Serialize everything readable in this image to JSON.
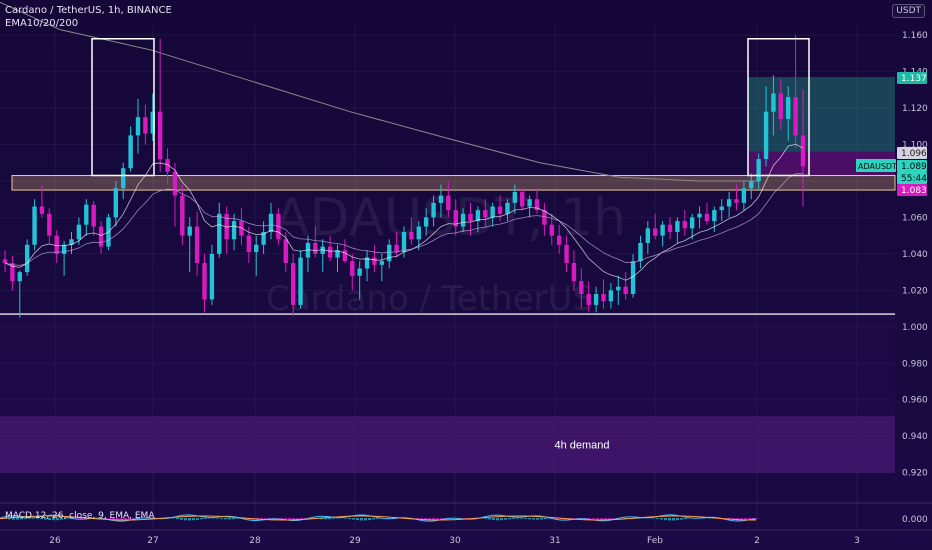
{
  "legend": {
    "symbol_line": "Cardano / TetherUS, 1h, BINANCE",
    "indicator_line": "EMA10/20/200"
  },
  "unit_badge": "USDT",
  "watermark": {
    "symbol": "ADAUSDT, 1h",
    "name": "Cardano / TetherUS"
  },
  "price_tags": [
    {
      "label": "1.137",
      "bg": "#1db9a3",
      "fg": "#ffffff",
      "value": 1.137
    },
    {
      "label": "1.096",
      "bg": "#d6d2e0",
      "fg": "#1a1a1a",
      "value": 1.096
    },
    {
      "label": "1.089",
      "bg": "#2dd4bf",
      "fg": "#0a0a0a",
      "value": 1.089
    },
    {
      "label": "55:44",
      "bg": "#2dd4bf",
      "fg": "#0a0a0a",
      "value": 1.085
    },
    {
      "label": "1.083",
      "bg": "#d81bc0",
      "fg": "#ffffff",
      "value": 1.078
    }
  ],
  "symbol_tag": "ADAUSDT",
  "zone_label": "4h demand",
  "macd_label": "MACD 12, 26, close, 9, EMA, EMA",
  "colors": {
    "bull": "#22c3d6",
    "bear": "#d81bc0",
    "resistance_band": "#c79a6a",
    "support_line": "#e8e8e8",
    "demand_zone": "#5b1d85",
    "tp_zone": "#1f8c7e",
    "sl_zone": "#9b1aa6",
    "ema200": "#8a8a8a"
  },
  "chart_data": {
    "type": "candlestick",
    "symbol": "ADAUSDT",
    "timeframe": "1h",
    "exchange": "BINANCE",
    "ylim": [
      0.905,
      1.165
    ],
    "y_ticks": [
      "1.160",
      "1.140",
      "1.120",
      "1.100",
      "1.080",
      "1.060",
      "1.040",
      "1.020",
      "1.000",
      "0.980",
      "0.960",
      "0.940",
      "0.920"
    ],
    "x_ticks": [
      "26",
      "27",
      "28",
      "29",
      "30",
      "31",
      "Feb",
      "2",
      "3"
    ],
    "key_levels": {
      "resistance_band": [
        1.075,
        1.083
      ],
      "support_line": 1.007,
      "demand_zone": [
        0.92,
        0.951
      ],
      "take_profit": [
        1.096,
        1.137
      ],
      "stop_zone": [
        1.083,
        1.096
      ]
    },
    "candles_ohlc": [
      [
        1.037,
        1.042,
        1.03,
        1.035
      ],
      [
        1.035,
        1.039,
        1.02,
        1.025
      ],
      [
        1.025,
        1.031,
        1.005,
        1.03
      ],
      [
        1.03,
        1.048,
        1.028,
        1.045
      ],
      [
        1.045,
        1.07,
        1.042,
        1.066
      ],
      [
        1.066,
        1.078,
        1.06,
        1.062
      ],
      [
        1.062,
        1.065,
        1.046,
        1.05
      ],
      [
        1.05,
        1.053,
        1.035,
        1.04
      ],
      [
        1.04,
        1.047,
        1.028,
        1.045
      ],
      [
        1.045,
        1.052,
        1.04,
        1.048
      ],
      [
        1.048,
        1.06,
        1.045,
        1.056
      ],
      [
        1.056,
        1.07,
        1.05,
        1.067
      ],
      [
        1.067,
        1.069,
        1.05,
        1.055
      ],
      [
        1.055,
        1.058,
        1.04,
        1.044
      ],
      [
        1.044,
        1.062,
        1.042,
        1.06
      ],
      [
        1.06,
        1.08,
        1.055,
        1.076
      ],
      [
        1.076,
        1.09,
        1.07,
        1.087
      ],
      [
        1.087,
        1.11,
        1.085,
        1.105
      ],
      [
        1.105,
        1.125,
        1.095,
        1.115
      ],
      [
        1.115,
        1.122,
        1.1,
        1.106
      ],
      [
        1.106,
        1.128,
        1.102,
        1.118
      ],
      [
        1.118,
        1.158,
        1.085,
        1.092
      ],
      [
        1.092,
        1.098,
        1.078,
        1.085
      ],
      [
        1.085,
        1.09,
        1.055,
        1.072
      ],
      [
        1.072,
        1.078,
        1.045,
        1.05
      ],
      [
        1.05,
        1.06,
        1.03,
        1.055
      ],
      [
        1.055,
        1.063,
        1.028,
        1.035
      ],
      [
        1.035,
        1.04,
        1.008,
        1.015
      ],
      [
        1.015,
        1.045,
        1.012,
        1.04
      ],
      [
        1.04,
        1.068,
        1.038,
        1.062
      ],
      [
        1.062,
        1.066,
        1.04,
        1.048
      ],
      [
        1.048,
        1.062,
        1.042,
        1.058
      ],
      [
        1.058,
        1.065,
        1.045,
        1.05
      ],
      [
        1.05,
        1.055,
        1.035,
        1.041
      ],
      [
        1.041,
        1.05,
        1.028,
        1.045
      ],
      [
        1.045,
        1.058,
        1.04,
        1.052
      ],
      [
        1.052,
        1.068,
        1.048,
        1.062
      ],
      [
        1.062,
        1.065,
        1.045,
        1.048
      ],
      [
        1.048,
        1.052,
        1.03,
        1.035
      ],
      [
        1.035,
        1.04,
        1.006,
        1.012
      ],
      [
        1.012,
        1.042,
        1.01,
        1.038
      ],
      [
        1.038,
        1.05,
        1.03,
        1.046
      ],
      [
        1.046,
        1.055,
        1.038,
        1.04
      ],
      [
        1.04,
        1.048,
        1.03,
        1.044
      ],
      [
        1.044,
        1.05,
        1.036,
        1.038
      ],
      [
        1.038,
        1.045,
        1.03,
        1.042
      ],
      [
        1.042,
        1.048,
        1.035,
        1.036
      ],
      [
        1.036,
        1.04,
        1.02,
        1.028
      ],
      [
        1.028,
        1.036,
        1.015,
        1.032
      ],
      [
        1.032,
        1.042,
        1.025,
        1.038
      ],
      [
        1.038,
        1.045,
        1.03,
        1.034
      ],
      [
        1.034,
        1.04,
        1.025,
        1.036
      ],
      [
        1.036,
        1.048,
        1.032,
        1.045
      ],
      [
        1.045,
        1.052,
        1.038,
        1.041
      ],
      [
        1.041,
        1.055,
        1.038,
        1.052
      ],
      [
        1.052,
        1.06,
        1.045,
        1.048
      ],
      [
        1.048,
        1.058,
        1.042,
        1.055
      ],
      [
        1.055,
        1.065,
        1.05,
        1.06
      ],
      [
        1.06,
        1.072,
        1.055,
        1.068
      ],
      [
        1.068,
        1.078,
        1.06,
        1.072
      ],
      [
        1.072,
        1.08,
        1.06,
        1.064
      ],
      [
        1.064,
        1.07,
        1.05,
        1.055
      ],
      [
        1.055,
        1.065,
        1.052,
        1.062
      ],
      [
        1.062,
        1.068,
        1.05,
        1.058
      ],
      [
        1.058,
        1.066,
        1.052,
        1.064
      ],
      [
        1.064,
        1.07,
        1.055,
        1.06
      ],
      [
        1.06,
        1.068,
        1.055,
        1.066
      ],
      [
        1.066,
        1.072,
        1.058,
        1.062
      ],
      [
        1.062,
        1.07,
        1.058,
        1.068
      ],
      [
        1.068,
        1.078,
        1.062,
        1.074
      ],
      [
        1.074,
        1.076,
        1.064,
        1.066
      ],
      [
        1.066,
        1.072,
        1.06,
        1.07
      ],
      [
        1.07,
        1.076,
        1.062,
        1.064
      ],
      [
        1.064,
        1.068,
        1.05,
        1.056
      ],
      [
        1.056,
        1.062,
        1.045,
        1.05
      ],
      [
        1.05,
        1.056,
        1.04,
        1.045
      ],
      [
        1.045,
        1.05,
        1.03,
        1.035
      ],
      [
        1.035,
        1.042,
        1.02,
        1.025
      ],
      [
        1.025,
        1.032,
        1.01,
        1.018
      ],
      [
        1.018,
        1.025,
        1.008,
        1.012
      ],
      [
        1.012,
        1.022,
        1.008,
        1.018
      ],
      [
        1.018,
        1.026,
        1.01,
        1.014
      ],
      [
        1.014,
        1.024,
        1.01,
        1.02
      ],
      [
        1.02,
        1.028,
        1.012,
        1.022
      ],
      [
        1.022,
        1.03,
        1.015,
        1.018
      ],
      [
        1.018,
        1.04,
        1.016,
        1.036
      ],
      [
        1.036,
        1.05,
        1.032,
        1.046
      ],
      [
        1.046,
        1.058,
        1.04,
        1.054
      ],
      [
        1.054,
        1.062,
        1.048,
        1.05
      ],
      [
        1.05,
        1.058,
        1.044,
        1.056
      ],
      [
        1.056,
        1.06,
        1.048,
        1.052
      ],
      [
        1.052,
        1.06,
        1.046,
        1.058
      ],
      [
        1.058,
        1.064,
        1.05,
        1.054
      ],
      [
        1.054,
        1.062,
        1.048,
        1.06
      ],
      [
        1.06,
        1.066,
        1.054,
        1.062
      ],
      [
        1.062,
        1.068,
        1.056,
        1.058
      ],
      [
        1.058,
        1.066,
        1.052,
        1.064
      ],
      [
        1.064,
        1.07,
        1.058,
        1.066
      ],
      [
        1.066,
        1.074,
        1.06,
        1.07
      ],
      [
        1.07,
        1.078,
        1.064,
        1.068
      ],
      [
        1.068,
        1.08,
        1.064,
        1.076
      ],
      [
        1.076,
        1.084,
        1.07,
        1.08
      ],
      [
        1.08,
        1.095,
        1.075,
        1.092
      ],
      [
        1.092,
        1.132,
        1.088,
        1.118
      ],
      [
        1.118,
        1.138,
        1.105,
        1.128
      ],
      [
        1.128,
        1.136,
        1.108,
        1.114
      ],
      [
        1.114,
        1.132,
        1.102,
        1.126
      ],
      [
        1.126,
        1.16,
        1.098,
        1.105
      ],
      [
        1.105,
        1.13,
        1.066,
        1.088
      ]
    ]
  }
}
